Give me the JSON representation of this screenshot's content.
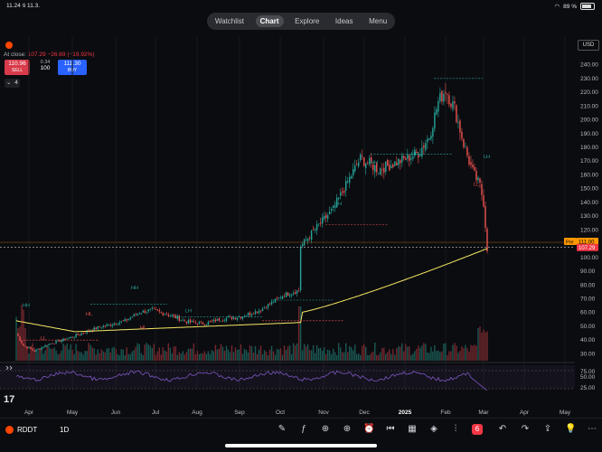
{
  "status": {
    "time": "11.24",
    "date": "ti 11.3.",
    "battery": "89 %"
  },
  "nav": {
    "tabs": [
      "Watchlist",
      "Chart",
      "Explore",
      "Ideas",
      "Menu"
    ],
    "active": "Chart"
  },
  "header": {
    "at_close_label": "At close:",
    "at_close_price": "107.29",
    "at_close_change": "−26.69 (−19.92%)",
    "sell_price": "110.96",
    "sell_label": "SELL",
    "spread": "0.34",
    "quantity": "100",
    "buy_price": "111.30",
    "buy_label": "BUY",
    "indicator_count": "4"
  },
  "price_axis": {
    "currency": "USD",
    "ticks": [
      "240.00",
      "230.00",
      "220.00",
      "210.00",
      "200.00",
      "190.00",
      "180.00",
      "170.00",
      "160.00",
      "150.00",
      "140.00",
      "130.00",
      "120.00",
      "110.00",
      "100.00",
      "90.00",
      "80.00",
      "70.00",
      "60.00",
      "50.00",
      "40.00",
      "30.00"
    ],
    "pre_label": "Pre",
    "pre_price": "111.00",
    "last_price": "107.29"
  },
  "rsi_axis": {
    "ticks": [
      "75.00",
      "50.00",
      "25.00"
    ]
  },
  "time_axis": {
    "ticks": [
      "Apr",
      "May",
      "Jun",
      "Jul",
      "Aug",
      "Sep",
      "Oct",
      "Nov",
      "Dec",
      "2025",
      "Feb",
      "Mar",
      "Apr",
      "May"
    ]
  },
  "chart_data": {
    "type": "candlestick",
    "symbol": "RDDT",
    "interval": "1D",
    "ylim": [
      25,
      245
    ],
    "x": [
      "Apr",
      "May",
      "Jun",
      "Jul",
      "Aug",
      "Sep",
      "Oct",
      "Nov",
      "Dec",
      "2025",
      "Feb",
      "Mar"
    ],
    "series": [
      {
        "name": "Close",
        "values": [
          45,
          48,
          52,
          60,
          55,
          58,
          72,
          115,
          160,
          180,
          225,
          107.29
        ]
      }
    ],
    "pivot_labels": [
      "HH",
      "HL",
      "LL",
      "LH",
      "HH",
      "HL",
      "HH",
      "HH",
      "HH",
      "LH",
      "LL"
    ],
    "colors": {
      "up": "#26a69a",
      "down": "#ef5350",
      "ma": "#f5e663",
      "rsi": "#7e57c2"
    }
  },
  "bottom": {
    "symbol": "RDDT",
    "interval": "1D"
  }
}
